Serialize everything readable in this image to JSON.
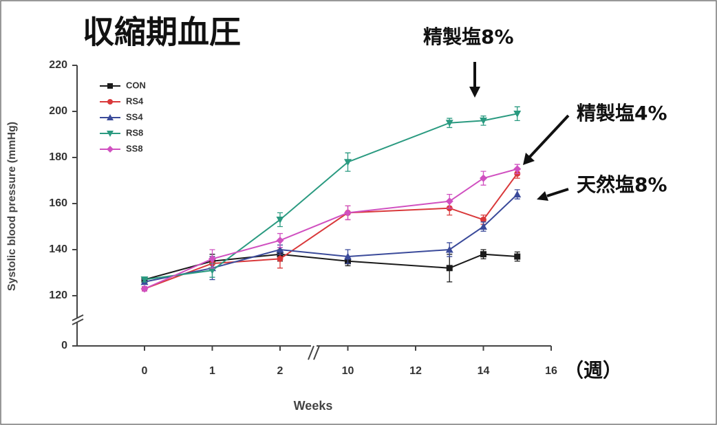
{
  "chart_data": {
    "type": "line",
    "title": "収縮期血圧",
    "x_label": "Weeks",
    "x_unit_label": "（週）",
    "y_label": "Systolic blood pressure (mmHg)",
    "annotations": [
      "精製塩8%",
      "精製塩4%",
      "天然塩8%"
    ],
    "x": [
      0,
      1,
      2,
      10,
      13,
      14,
      15
    ],
    "xlim": [
      0,
      16
    ],
    "xticks": [
      0,
      1,
      2,
      10,
      12,
      14,
      16
    ],
    "ylim": [
      0,
      220
    ],
    "yticks": [
      0,
      120,
      140,
      160,
      180,
      200,
      220
    ],
    "legend": "top-left",
    "series": [
      {
        "name": "CON",
        "color": "#1a1a1a",
        "marker": "square",
        "values": [
          127,
          135,
          138,
          135,
          132,
          138,
          137
        ],
        "errors": [
          1,
          3,
          3,
          2,
          6,
          2,
          2
        ]
      },
      {
        "name": "RS4",
        "color": "#d9383a",
        "marker": "circle",
        "values": [
          123,
          134,
          136,
          156,
          158,
          153,
          173
        ],
        "errors": [
          1,
          3,
          4,
          3,
          3,
          2,
          2
        ]
      },
      {
        "name": "SS4",
        "color": "#3a4a9a",
        "marker": "triangle",
        "values": [
          126,
          132,
          140,
          137,
          140,
          150,
          164
        ],
        "errors": [
          1,
          5,
          2,
          3,
          3,
          2,
          2
        ]
      },
      {
        "name": "RS8",
        "color": "#2a9a80",
        "marker": "triangle-down",
        "values": [
          127,
          131,
          153,
          178,
          195,
          196,
          199
        ],
        "errors": [
          1,
          3,
          3,
          4,
          2,
          2,
          3
        ]
      },
      {
        "name": "SS8",
        "color": "#d050c0",
        "marker": "diamond",
        "values": [
          123,
          136,
          144,
          156,
          161,
          171,
          175
        ],
        "errors": [
          1,
          4,
          3,
          3,
          3,
          3,
          2
        ]
      }
    ]
  }
}
